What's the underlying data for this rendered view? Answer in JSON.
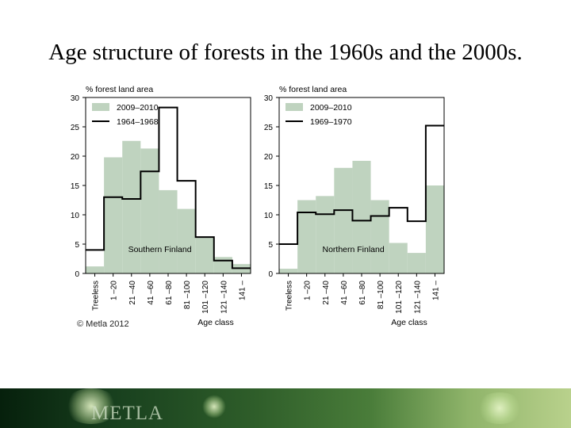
{
  "slide": {
    "title": "Age structure of forests in the 1960s and the 2000s.",
    "copyright": "© Metla 2012",
    "logo_text": "METLA"
  },
  "colors": {
    "fill": "#bfd3bf",
    "line": "#000000",
    "axis": "#000000"
  },
  "chart_data": [
    {
      "type": "bar",
      "ylabel": "% forest land area",
      "xlabel": "",
      "annotation": "Southern Finland",
      "ylim": [
        0,
        30
      ],
      "yticks": [
        0,
        5,
        10,
        15,
        20,
        25,
        30
      ],
      "categories": [
        "Treeless",
        "1 –20",
        "21 –40",
        "41 –60",
        "61 –80",
        "81 –100",
        "101 –120",
        "121 –140",
        "141 –"
      ],
      "series": [
        {
          "name": "2009–2010",
          "style": "filled",
          "values": [
            1.2,
            19.8,
            22.6,
            21.3,
            14.2,
            11.0,
            6.2,
            2.8,
            1.6
          ]
        },
        {
          "name": "1964–1968",
          "style": "step",
          "values": [
            4.0,
            13.0,
            12.7,
            17.4,
            28.3,
            15.8,
            6.2,
            2.2,
            0.9
          ]
        }
      ]
    },
    {
      "type": "bar",
      "ylabel": "% forest land area",
      "xlabel": "Age class",
      "annotation": "Northern Finland",
      "ylim": [
        0,
        30
      ],
      "yticks": [
        0,
        5,
        10,
        15,
        20,
        25,
        30
      ],
      "categories": [
        "Treeless",
        "1 –20",
        "21 –40",
        "41 –60",
        "61 –80",
        "81 –100",
        "101 –120",
        "121 –140",
        "141 –"
      ],
      "series": [
        {
          "name": "2009–2010",
          "style": "filled",
          "values": [
            0.8,
            12.5,
            13.2,
            18.0,
            19.2,
            12.5,
            5.2,
            3.5,
            15.0
          ]
        },
        {
          "name": "1969–1970",
          "style": "step",
          "values": [
            5.0,
            10.4,
            10.1,
            10.8,
            9.0,
            9.8,
            11.2,
            8.9,
            25.2
          ]
        }
      ]
    }
  ],
  "shared_xlabel": "Age class"
}
